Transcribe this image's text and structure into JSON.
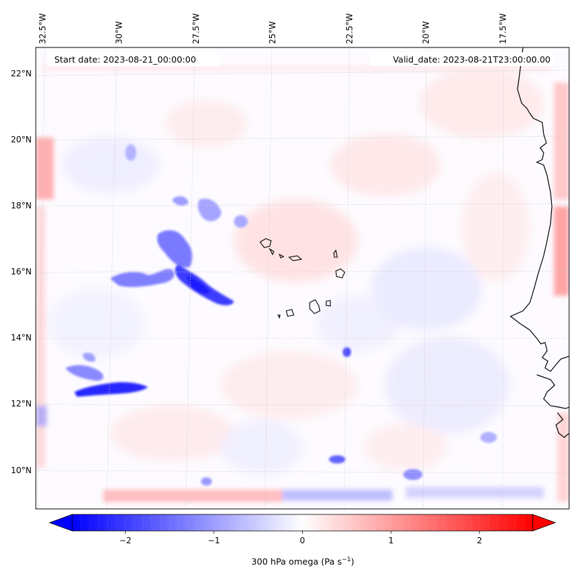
{
  "map": {
    "start_date_label": "Start date: 2023-08-21_00:00:00",
    "valid_date_label": "Valid_date: 2023-08-21T23:00:00.00",
    "lon_ticks": [
      "32.5°W",
      "30°W",
      "27.5°W",
      "25°W",
      "22.5°W",
      "20°W",
      "17.5°W"
    ],
    "lat_ticks": [
      "22°N",
      "20°N",
      "18°N",
      "16°N",
      "14°N",
      "12°N",
      "10°N"
    ],
    "field": "300 hPa omega",
    "extent": {
      "lon_min": -32.8,
      "lon_max": -15.2,
      "lat_min": 8.9,
      "lat_max": 22.8
    }
  },
  "colorbar": {
    "label_text": "300 hPa omega (Pa s",
    "label_sup": "−1",
    "label_close": ")",
    "ticks": [
      "−2",
      "−1",
      "0",
      "1",
      "2"
    ],
    "tick_values": [
      -2,
      -1,
      0,
      1,
      2
    ],
    "vmin": -2.6,
    "vmax": 2.6,
    "colormap": "bwr",
    "extend": "both"
  },
  "colors": {
    "negative": "#0000ff",
    "zero": "#ffffff",
    "positive": "#ff0000",
    "coastline": "#000000",
    "gridline": "#c8c8c8"
  }
}
